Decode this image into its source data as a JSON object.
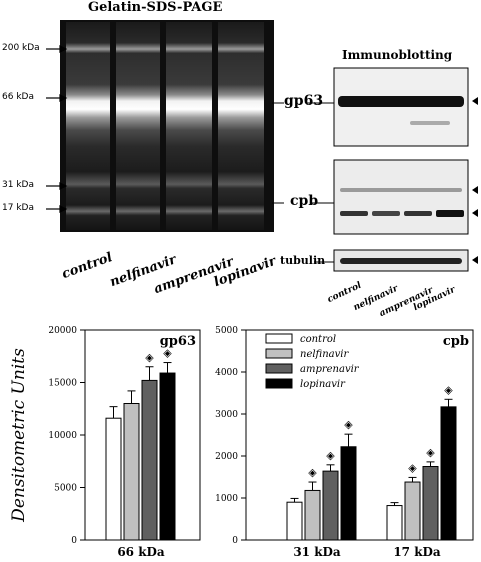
{
  "gel": {
    "title": "Gelatin-SDS-PAGE",
    "markers": [
      "200 kDa",
      "66 kDa",
      "31 kDa",
      "17 kDa"
    ],
    "lanes": [
      "control",
      "nelfinavir",
      "amprenavir",
      "lopinavir"
    ]
  },
  "immunoblot": {
    "title": "Immunoblotting",
    "gp63_label": "gp63",
    "cpb_label": "cpb",
    "tubulin_label": "tubulin",
    "lanes": [
      "control",
      "nelfinavir",
      "amprenavir",
      "lopinavir"
    ]
  },
  "colors": {
    "control": "#ffffff",
    "nelfinavir": "#c0c0c0",
    "amprenavir": "#606060",
    "lopinavir": "#000000"
  },
  "chart_data": [
    {
      "type": "bar",
      "title": "gp63",
      "ylabel": "Densitometric Units",
      "categories": [
        "66 kDa"
      ],
      "ylim": [
        0,
        20000
      ],
      "yticks": [
        0,
        5000,
        10000,
        15000,
        20000
      ],
      "series": [
        {
          "name": "control",
          "values": [
            11600
          ],
          "errors": [
            1100
          ]
        },
        {
          "name": "nelfinavir",
          "values": [
            13000
          ],
          "errors": [
            1200
          ]
        },
        {
          "name": "amprenavir",
          "values": [
            15200
          ],
          "errors": [
            1300
          ]
        },
        {
          "name": "lopinavir",
          "values": [
            15900
          ],
          "errors": [
            1000
          ]
        }
      ],
      "significance_marks": [
        {
          "series": "amprenavir",
          "category": "66 kDa",
          "symbol": "◈"
        },
        {
          "series": "lopinavir",
          "category": "66 kDa",
          "symbol": "◈"
        }
      ]
    },
    {
      "type": "bar",
      "title": "cpb",
      "categories": [
        "31 kDa",
        "17 kDa"
      ],
      "ylim": [
        0,
        5000
      ],
      "yticks": [
        0,
        1000,
        2000,
        3000,
        4000,
        5000
      ],
      "legend_position": "top-left",
      "series": [
        {
          "name": "control",
          "values": [
            900,
            820
          ],
          "errors": [
            90,
            70
          ]
        },
        {
          "name": "nelfinavir",
          "values": [
            1180,
            1380
          ],
          "errors": [
            200,
            110
          ]
        },
        {
          "name": "amprenavir",
          "values": [
            1640,
            1750
          ],
          "errors": [
            150,
            110
          ]
        },
        {
          "name": "lopinavir",
          "values": [
            2220,
            3170
          ],
          "errors": [
            300,
            180
          ]
        }
      ],
      "significance_marks": [
        {
          "series": "nelfinavir",
          "category": "31 kDa",
          "symbol": "◈"
        },
        {
          "series": "amprenavir",
          "category": "31 kDa",
          "symbol": "◈"
        },
        {
          "series": "lopinavir",
          "category": "31 kDa",
          "symbol": "◈"
        },
        {
          "series": "nelfinavir",
          "category": "17 kDa",
          "symbol": "◈"
        },
        {
          "series": "amprenavir",
          "category": "17 kDa",
          "symbol": "◈"
        },
        {
          "series": "lopinavir",
          "category": "17 kDa",
          "symbol": "◈"
        }
      ]
    }
  ]
}
